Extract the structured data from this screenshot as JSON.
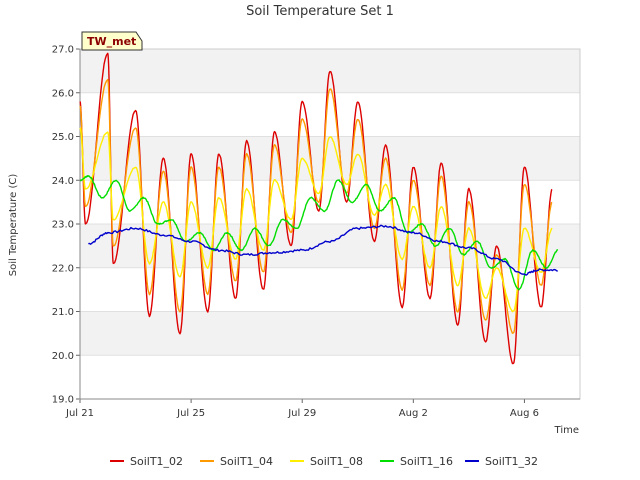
{
  "chart_data": {
    "type": "line",
    "title": "Soil Temperature Set 1",
    "site_badge": "TW_met",
    "xlabel": "Time",
    "ylabel": "Soil Temperature (C)",
    "xlim_days": [
      0,
      18
    ],
    "ylim": [
      19.0,
      27.0
    ],
    "yticks": [
      "19.0",
      "20.0",
      "21.0",
      "22.0",
      "23.0",
      "24.0",
      "25.0",
      "26.0",
      "27.0"
    ],
    "xticks": [
      {
        "label": "Jul 21",
        "day": 0
      },
      {
        "label": "Jul 25",
        "day": 4
      },
      {
        "label": "Jul 29",
        "day": 8
      },
      {
        "label": "Aug 2",
        "day": 12
      },
      {
        "label": "Aug 6",
        "day": 16
      }
    ],
    "grid": "horizontal bands",
    "legend_position": "bottom",
    "series": [
      {
        "name": "SoilT1_02",
        "color": "#dd0000",
        "min": [
          [
            0.2,
            23.0
          ],
          [
            1.2,
            22.1
          ],
          [
            2.5,
            20.9
          ],
          [
            3.6,
            20.5
          ],
          [
            4.6,
            21.0
          ],
          [
            5.6,
            21.3
          ],
          [
            6.6,
            21.5
          ],
          [
            7.6,
            22.5
          ],
          [
            8.6,
            23.3
          ],
          [
            9.6,
            23.5
          ],
          [
            10.6,
            22.6
          ],
          [
            11.6,
            21.1
          ],
          [
            12.6,
            21.3
          ],
          [
            13.6,
            20.7
          ],
          [
            14.6,
            20.3
          ],
          [
            15.6,
            19.8
          ],
          [
            16.6,
            21.1
          ]
        ],
        "max": [
          [
            0.0,
            25.8
          ],
          [
            1.0,
            26.9
          ],
          [
            2.0,
            25.6
          ],
          [
            3.0,
            24.5
          ],
          [
            4.0,
            24.6
          ],
          [
            5.0,
            24.6
          ],
          [
            6.0,
            24.9
          ],
          [
            7.0,
            25.1
          ],
          [
            8.0,
            25.8
          ],
          [
            9.0,
            26.5
          ],
          [
            10.0,
            25.8
          ],
          [
            11.0,
            24.8
          ],
          [
            12.0,
            24.3
          ],
          [
            13.0,
            24.4
          ],
          [
            14.0,
            23.8
          ],
          [
            15.0,
            22.5
          ],
          [
            16.0,
            24.3
          ],
          [
            17.0,
            23.8
          ]
        ]
      },
      {
        "name": "SoilT1_04",
        "color": "#ff9900",
        "min": [
          [
            0.2,
            23.4
          ],
          [
            1.2,
            22.5
          ],
          [
            2.5,
            21.4
          ],
          [
            3.6,
            21.0
          ],
          [
            4.6,
            21.4
          ],
          [
            5.6,
            21.7
          ],
          [
            6.6,
            21.9
          ],
          [
            7.6,
            22.8
          ],
          [
            8.6,
            23.5
          ],
          [
            9.6,
            23.7
          ],
          [
            10.6,
            22.9
          ],
          [
            11.6,
            21.5
          ],
          [
            12.6,
            21.6
          ],
          [
            13.6,
            21.0
          ],
          [
            14.6,
            20.8
          ],
          [
            15.6,
            20.5
          ],
          [
            16.6,
            21.6
          ]
        ],
        "max": [
          [
            0.0,
            25.7
          ],
          [
            1.0,
            26.3
          ],
          [
            2.0,
            25.2
          ],
          [
            3.0,
            24.2
          ],
          [
            4.0,
            24.3
          ],
          [
            5.0,
            24.3
          ],
          [
            6.0,
            24.6
          ],
          [
            7.0,
            24.8
          ],
          [
            8.0,
            25.4
          ],
          [
            9.0,
            26.1
          ],
          [
            10.0,
            25.4
          ],
          [
            11.0,
            24.5
          ],
          [
            12.0,
            24.0
          ],
          [
            13.0,
            24.1
          ],
          [
            14.0,
            23.5
          ],
          [
            15.0,
            22.3
          ],
          [
            16.0,
            23.9
          ],
          [
            17.0,
            23.5
          ]
        ]
      },
      {
        "name": "SoilT1_08",
        "color": "#ffee00",
        "min": [
          [
            0.2,
            23.8
          ],
          [
            1.2,
            23.1
          ],
          [
            2.5,
            22.1
          ],
          [
            3.6,
            21.8
          ],
          [
            4.6,
            22.0
          ],
          [
            5.6,
            22.2
          ],
          [
            6.6,
            22.4
          ],
          [
            7.6,
            23.1
          ],
          [
            8.6,
            23.7
          ],
          [
            9.6,
            23.9
          ],
          [
            10.6,
            23.2
          ],
          [
            11.6,
            22.2
          ],
          [
            12.6,
            22.0
          ],
          [
            13.6,
            21.6
          ],
          [
            14.6,
            21.3
          ],
          [
            15.6,
            21.0
          ],
          [
            16.6,
            21.9
          ]
        ],
        "max": [
          [
            0.0,
            25.2
          ],
          [
            1.0,
            25.1
          ],
          [
            2.0,
            24.3
          ],
          [
            3.0,
            23.5
          ],
          [
            4.0,
            23.5
          ],
          [
            5.0,
            23.6
          ],
          [
            6.0,
            23.8
          ],
          [
            7.0,
            24.0
          ],
          [
            8.0,
            24.5
          ],
          [
            9.0,
            25.0
          ],
          [
            10.0,
            24.6
          ],
          [
            11.0,
            23.9
          ],
          [
            12.0,
            23.4
          ],
          [
            13.0,
            23.4
          ],
          [
            14.0,
            22.9
          ],
          [
            15.0,
            22.0
          ],
          [
            16.0,
            22.9
          ],
          [
            17.0,
            22.9
          ]
        ]
      },
      {
        "name": "SoilT1_16",
        "color": "#00dd00",
        "min": [
          [
            0.0,
            24.0
          ],
          [
            0.8,
            23.6
          ],
          [
            1.8,
            23.3
          ],
          [
            2.8,
            23.0
          ],
          [
            3.8,
            22.6
          ],
          [
            4.8,
            22.4
          ],
          [
            5.8,
            22.4
          ],
          [
            6.8,
            22.5
          ],
          [
            7.8,
            22.9
          ],
          [
            8.8,
            23.3
          ],
          [
            9.8,
            23.5
          ],
          [
            10.8,
            23.3
          ],
          [
            11.8,
            22.8
          ],
          [
            12.8,
            22.5
          ],
          [
            13.8,
            22.3
          ],
          [
            14.8,
            22.0
          ],
          [
            15.8,
            21.5
          ],
          [
            16.8,
            22.0
          ],
          [
            17.2,
            22.4
          ]
        ],
        "max": [
          [
            0.3,
            24.1
          ],
          [
            1.3,
            24.0
          ],
          [
            2.3,
            23.6
          ],
          [
            3.3,
            23.1
          ],
          [
            4.3,
            22.8
          ],
          [
            5.3,
            22.8
          ],
          [
            6.3,
            22.9
          ],
          [
            7.3,
            23.1
          ],
          [
            8.3,
            23.6
          ],
          [
            9.3,
            24.0
          ],
          [
            10.3,
            23.9
          ],
          [
            11.3,
            23.6
          ],
          [
            12.3,
            23.0
          ],
          [
            13.3,
            22.9
          ],
          [
            14.3,
            22.6
          ],
          [
            15.3,
            22.2
          ],
          [
            16.3,
            22.4
          ]
        ]
      },
      {
        "name": "SoilT1_32",
        "color": "#0000cc",
        "points": [
          [
            0.3,
            22.55
          ],
          [
            1.0,
            22.8
          ],
          [
            2.0,
            22.9
          ],
          [
            3.0,
            22.75
          ],
          [
            4.0,
            22.6
          ],
          [
            5.0,
            22.4
          ],
          [
            6.0,
            22.3
          ],
          [
            7.0,
            22.35
          ],
          [
            8.0,
            22.4
          ],
          [
            9.0,
            22.6
          ],
          [
            10.0,
            22.9
          ],
          [
            11.0,
            22.95
          ],
          [
            12.0,
            22.8
          ],
          [
            13.0,
            22.6
          ],
          [
            14.0,
            22.45
          ],
          [
            15.0,
            22.2
          ],
          [
            16.0,
            21.85
          ],
          [
            16.5,
            21.95
          ],
          [
            17.2,
            21.95
          ]
        ]
      }
    ]
  }
}
